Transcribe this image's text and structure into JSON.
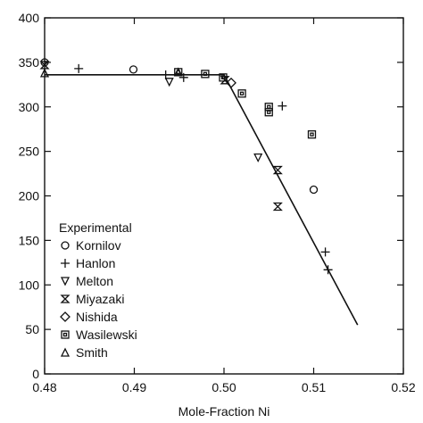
{
  "chart_data": {
    "type": "scatter",
    "xlabel": "Mole-Fraction Ni",
    "ylabel": "",
    "xlim": [
      0.48,
      0.52
    ],
    "ylim": [
      0,
      400
    ],
    "x_ticks": [
      0.48,
      0.49,
      0.5,
      0.51,
      0.52
    ],
    "x_tick_labels": [
      "0.48",
      "0.49",
      "0.50",
      "0.51",
      "0.52"
    ],
    "y_ticks": [
      0,
      50,
      100,
      150,
      200,
      250,
      300,
      350,
      400
    ],
    "y_tick_labels": [
      "0",
      "50",
      "100",
      "150",
      "200",
      "250",
      "300",
      "350",
      "400"
    ],
    "grid": false,
    "legend": {
      "title": "Experimental",
      "placement": "bottom-left",
      "entries": [
        "Kornilov",
        "Hanlon",
        "Melton",
        "Miyazaki",
        "Nishida",
        "Wasilewski",
        "Smith"
      ]
    },
    "fit_line": {
      "x": [
        0.48,
        0.5,
        0.5149
      ],
      "y": [
        336,
        336,
        55
      ]
    },
    "series": [
      {
        "name": "Kornilov",
        "marker": "circle",
        "x": [
          0.48,
          0.4899,
          0.51
        ],
        "y": [
          350,
          342,
          207
        ]
      },
      {
        "name": "Hanlon",
        "marker": "plus",
        "x": [
          0.4838,
          0.4935,
          0.4955,
          0.5065,
          0.5113,
          0.5116
        ],
        "y": [
          343,
          336,
          333,
          301,
          137,
          117
        ]
      },
      {
        "name": "Melton",
        "marker": "triangle-down",
        "x": [
          0.4939,
          0.5038
        ],
        "y": [
          328,
          243
        ]
      },
      {
        "name": "Miyazaki",
        "marker": "hourglass",
        "x": [
          0.48,
          0.5001,
          0.506,
          0.506
        ],
        "y": [
          347,
          330,
          229,
          188
        ]
      },
      {
        "name": "Nishida",
        "marker": "diamond",
        "x": [
          0.5008
        ],
        "y": [
          327
        ]
      },
      {
        "name": "Wasilewski",
        "marker": "square",
        "x": [
          0.4949,
          0.4979,
          0.4999,
          0.502,
          0.505,
          0.505,
          0.5098
        ],
        "y": [
          339,
          337,
          333,
          315,
          300,
          294,
          269
        ]
      },
      {
        "name": "Smith",
        "marker": "triangle-up",
        "x": [
          0.48,
          0.4949
        ],
        "y": [
          338,
          339
        ]
      }
    ]
  }
}
